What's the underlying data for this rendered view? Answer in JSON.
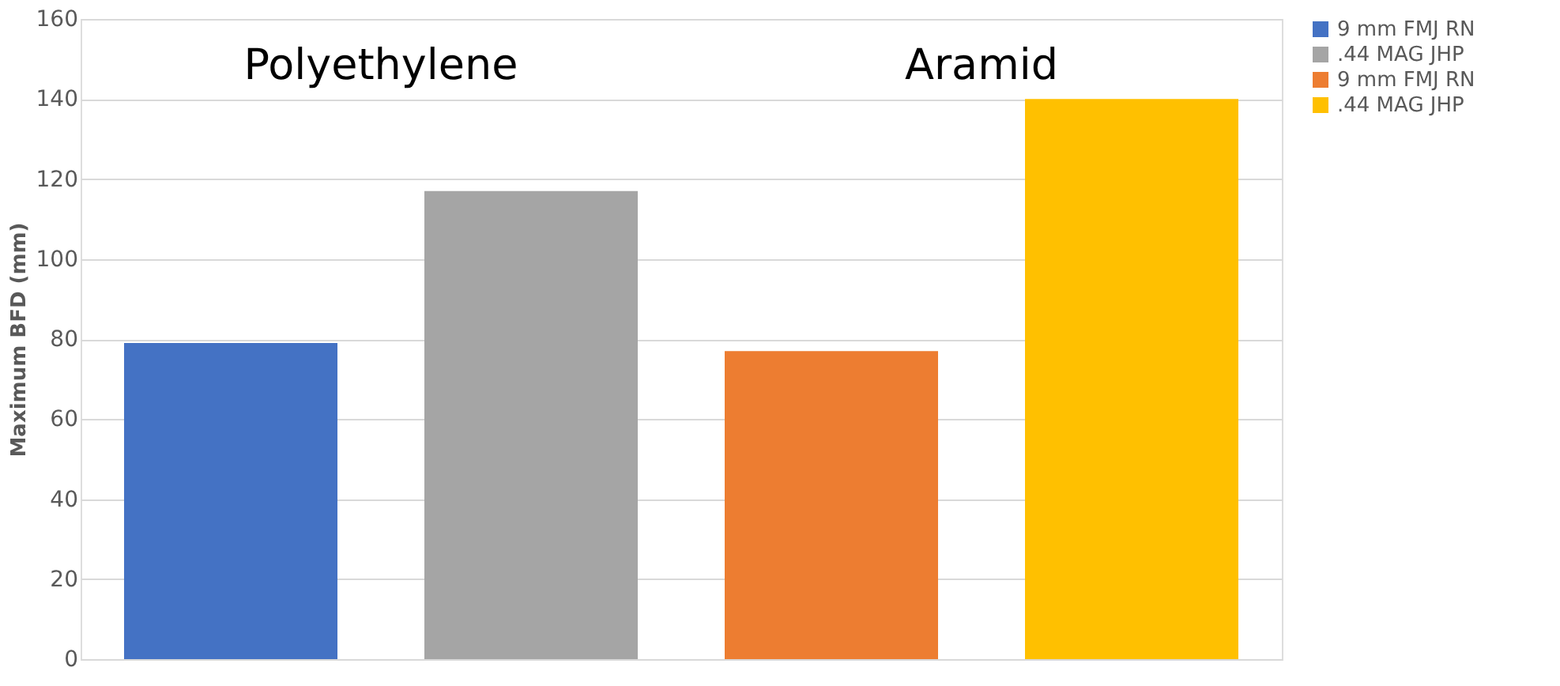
{
  "chart_data": {
    "type": "bar",
    "ylabel": "Maximum BFD (mm)",
    "categories": [
      null,
      null,
      null,
      null
    ],
    "series": [
      {
        "name": "9 mm FMJ RN",
        "color": "#4472c4",
        "values": [
          79,
          null,
          null,
          null
        ]
      },
      {
        "name": ".44 MAG JHP",
        "color": "#a5a5a5",
        "values": [
          null,
          117,
          null,
          null
        ]
      },
      {
        "name": "9 mm FMJ RN",
        "color": "#ed7d31",
        "values": [
          null,
          null,
          77,
          null
        ]
      },
      {
        "name": ".44 MAG JHP",
        "color": "#ffc000",
        "values": [
          null,
          null,
          null,
          140
        ]
      }
    ],
    "annotations": [
      "Polyethylene",
      "Aramid"
    ],
    "ylim": [
      0,
      160
    ],
    "yticks": [
      0,
      20,
      40,
      60,
      80,
      100,
      120,
      140,
      160
    ],
    "grid": "y",
    "legend": "right"
  }
}
